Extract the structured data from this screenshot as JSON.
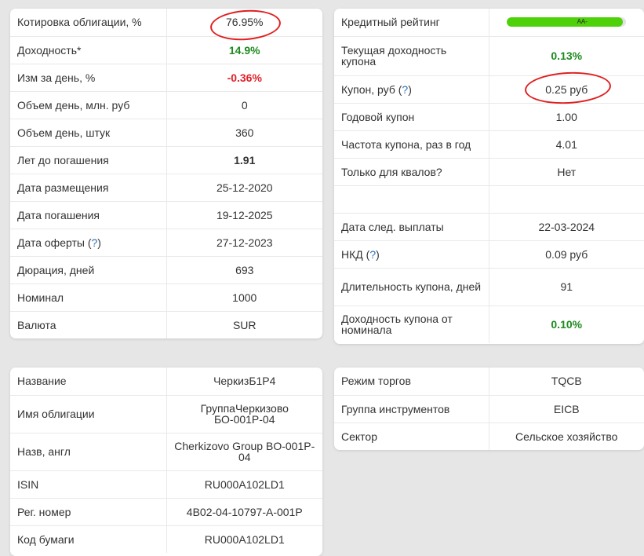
{
  "bond_main": [
    {
      "label": "Котировка облигации, %",
      "value": "76.95%",
      "style": "",
      "height": 35
    },
    {
      "label": "Доходность*",
      "value": "14.9%",
      "style": "green",
      "height": 35
    },
    {
      "label": "Изм за день, %",
      "value": "-0.36%",
      "style": "red",
      "height": 35
    },
    {
      "label": "Объем день, млн. руб",
      "value": "0",
      "style": "",
      "height": 35
    },
    {
      "label": "Объем день, штук",
      "value": "360",
      "style": "",
      "height": 35
    },
    {
      "label": "Лет до погашения",
      "value": "1.91",
      "style": "bold",
      "height": 35
    },
    {
      "label": "Дата размещения",
      "value": "25-12-2020",
      "style": "",
      "height": 35
    },
    {
      "label": "Дата погашения",
      "value": "19-12-2025",
      "style": "",
      "height": 35
    },
    {
      "label": "Дата оферты",
      "help": "?",
      "value": "27-12-2023",
      "style": "",
      "height": 35
    },
    {
      "label": "Дюрация, дней",
      "value": "693",
      "style": "",
      "height": 35
    },
    {
      "label": "Номинал",
      "value": "1000",
      "style": "",
      "height": 35
    },
    {
      "label": "Валюта",
      "value": "SUR",
      "style": "",
      "height": 35
    }
  ],
  "coupon": {
    "rating_label": "Кредитный рейтинг",
    "rating_value": "AA-",
    "rating_fill": 0.97,
    "rows": [
      {
        "label": "Текущая доходность купона",
        "value": "0.13%",
        "style": "green"
      },
      {
        "label": "Купон, руб",
        "help": "?",
        "value": "0.25 руб",
        "style": ""
      },
      {
        "label": "Годовой купон",
        "value": "1.00",
        "style": ""
      },
      {
        "label": "Частота купона, раз в год",
        "value": "4.01",
        "style": ""
      },
      {
        "label": "Только для квалов?",
        "value": "Нет",
        "style": ""
      },
      {
        "label": "",
        "value": "",
        "style": ""
      },
      {
        "label": "Дата след. выплаты",
        "value": "22-03-2024",
        "style": ""
      },
      {
        "label": "НКД",
        "help": "?",
        "value": "0.09 руб",
        "style": ""
      },
      {
        "label": "Длительность купона, дней",
        "value": "91",
        "style": ""
      },
      {
        "label": "Доходность купона от номинала",
        "value": "0.10%",
        "style": "green"
      }
    ]
  },
  "info": [
    {
      "label": "Название",
      "value": "ЧеркизБ1Р4"
    },
    {
      "label": "Имя облигации",
      "value": "ГруппаЧеркизово БО-001Р-04"
    },
    {
      "label": "Назв, англ",
      "value": "Cherkizovo Group BO-001P-04"
    },
    {
      "label": "ISIN",
      "value": "RU000A102LD1"
    },
    {
      "label": "Рег. номер",
      "value": "4B02-04-10797-A-001P"
    },
    {
      "label": "Код бумаги",
      "value": "RU000A102LD1"
    }
  ],
  "trading": [
    {
      "label": "Режим торгов",
      "value": "TQCB"
    },
    {
      "label": "Группа инструментов",
      "value": "EICB"
    },
    {
      "label": "Сектор",
      "value": "Сельское хозяйство"
    }
  ],
  "colors": {
    "positive": "#1f8a1f",
    "negative": "#e0202a",
    "help_link": "#2a6fb8",
    "rating_fill": "#4fd10a",
    "annotation": "#e02020"
  }
}
